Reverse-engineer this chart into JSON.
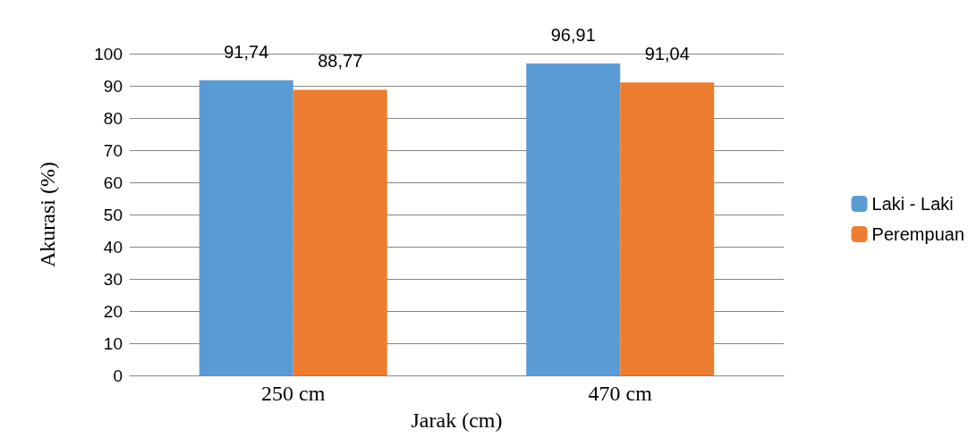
{
  "chart_data": {
    "type": "bar",
    "xlabel": "Jarak (cm)",
    "ylabel": "Akurasi (%)",
    "categories": [
      "250 cm",
      "470 cm"
    ],
    "series": [
      {
        "name": "Laki - Laki",
        "color": "#5b9bd5",
        "values": [
          91.74,
          96.91
        ],
        "value_labels": [
          "91,74",
          "96,91"
        ]
      },
      {
        "name": "Perempuan",
        "color": "#ed7d31",
        "values": [
          88.77,
          91.04
        ],
        "value_labels": [
          "88,77",
          "91,04"
        ]
      }
    ],
    "ylim": [
      0,
      100
    ],
    "yticks": [
      0,
      10,
      20,
      30,
      40,
      50,
      60,
      70,
      80,
      90,
      100
    ],
    "grid": "y",
    "legend": "right"
  }
}
